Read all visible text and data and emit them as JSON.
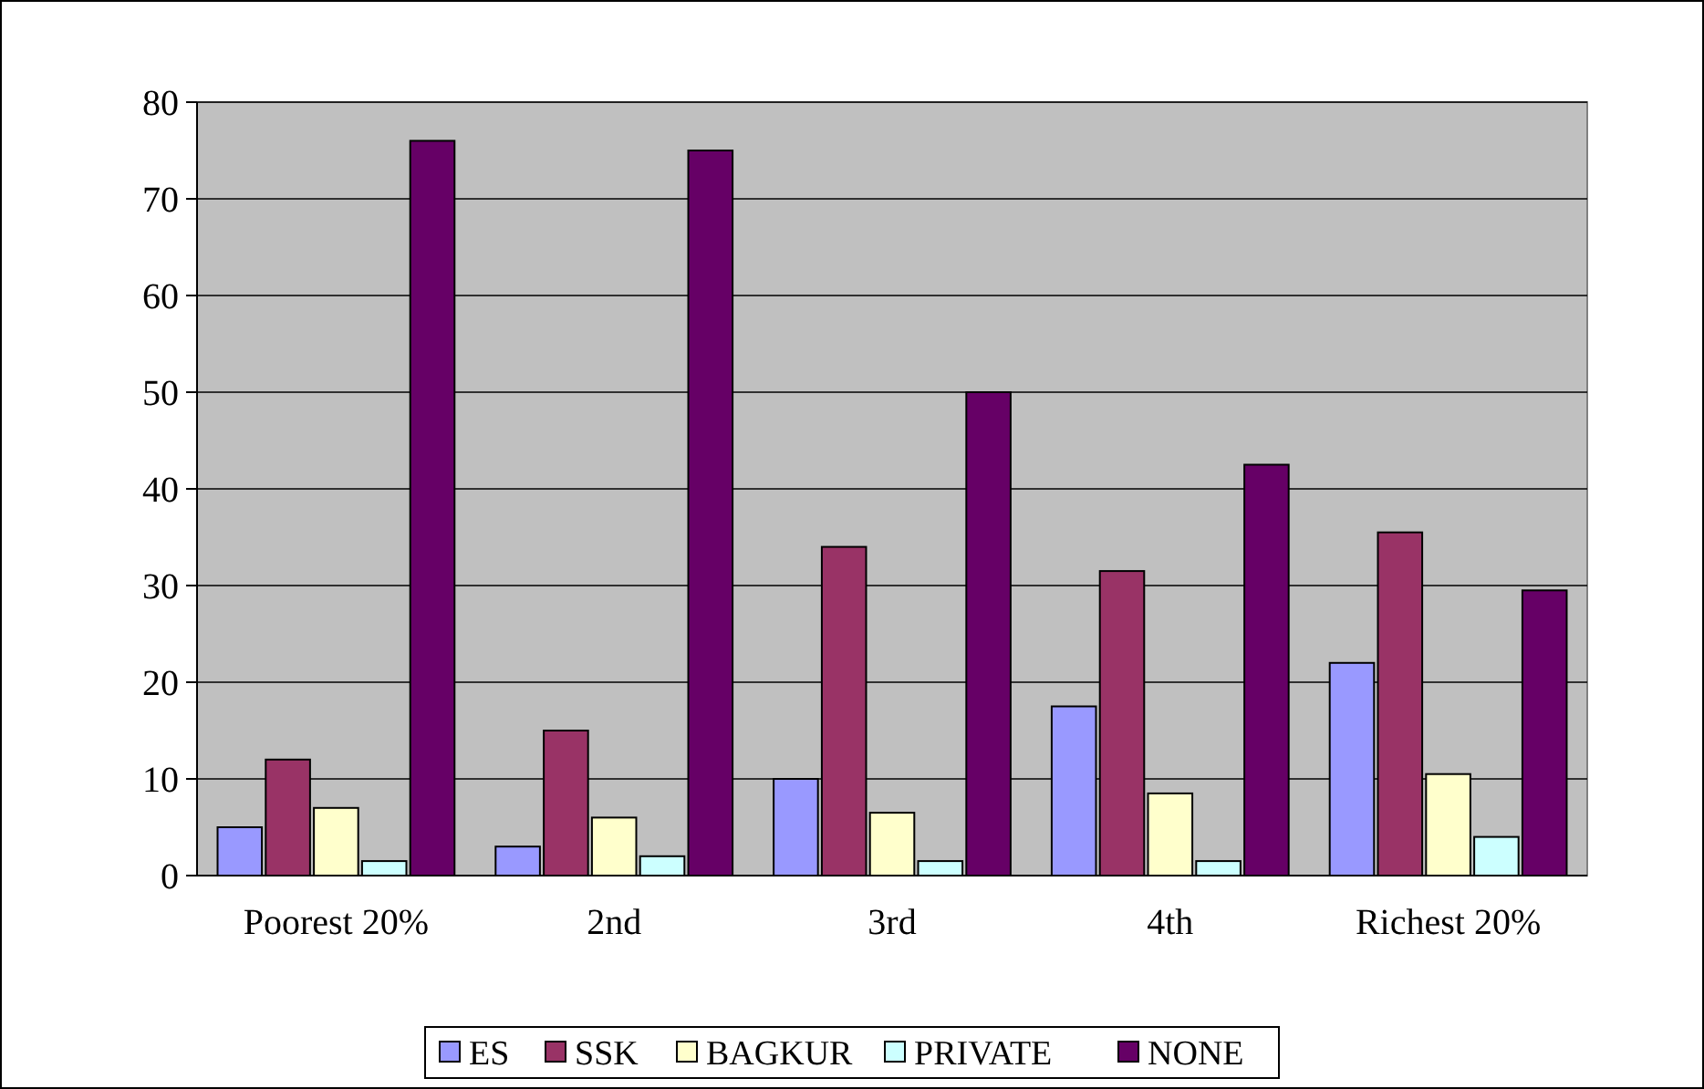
{
  "chart_data": {
    "type": "bar",
    "categories": [
      "Poorest 20%",
      "2nd",
      "3rd",
      "4th",
      "Richest 20%"
    ],
    "series": [
      {
        "name": "ES",
        "color": "#9999ff",
        "values": [
          5,
          3,
          10,
          17.5,
          22
        ]
      },
      {
        "name": "SSK",
        "color": "#993366",
        "values": [
          12,
          15,
          34,
          31.5,
          35.5
        ]
      },
      {
        "name": "BAGKUR",
        "color": "#ffffcc",
        "values": [
          7,
          6,
          6.5,
          8.5,
          10.5
        ]
      },
      {
        "name": "PRIVATE",
        "color": "#ccffff",
        "values": [
          1.5,
          2,
          1.5,
          1.5,
          4
        ]
      },
      {
        "name": "NONE",
        "color": "#660066",
        "values": [
          76,
          75,
          50,
          42.5,
          29.5
        ]
      }
    ],
    "ylim": [
      0,
      80
    ],
    "yticks": [
      0,
      10,
      20,
      30,
      40,
      50,
      60,
      70,
      80
    ],
    "grid": "y",
    "legend": "bottom"
  }
}
